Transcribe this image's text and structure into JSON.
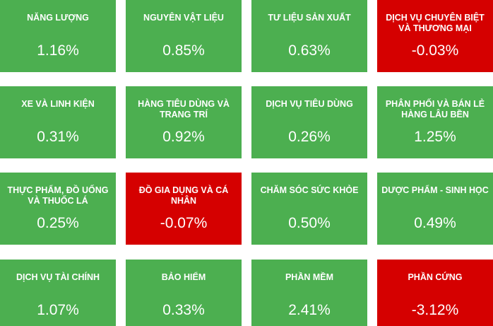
{
  "colors": {
    "positive": "#4caf50",
    "negative": "#d50000",
    "text": "#ffffff"
  },
  "tiles": [
    {
      "name": "NĂNG LƯỢNG",
      "value": "1.16%",
      "trend": "up"
    },
    {
      "name": "NGUYÊN VẬT LIỆU",
      "value": "0.85%",
      "trend": "up"
    },
    {
      "name": "TƯ LIỆU SẢN XUẤT",
      "value": "0.63%",
      "trend": "up"
    },
    {
      "name": "DỊCH VỤ CHUYÊN BIỆT VÀ THƯƠNG MẠI",
      "value": "-0.03%",
      "trend": "down"
    },
    {
      "name": "XE VÀ LINH KIỆN",
      "value": "0.31%",
      "trend": "up"
    },
    {
      "name": "HÀNG TIÊU DÙNG VÀ TRANG TRÍ",
      "value": "0.92%",
      "trend": "up"
    },
    {
      "name": "DỊCH VỤ TIÊU DÙNG",
      "value": "0.26%",
      "trend": "up"
    },
    {
      "name": "PHÂN PHỐI VÀ BÁN LẺ HÀNG LÂU BỀN",
      "value": "1.25%",
      "trend": "up"
    },
    {
      "name": "THỰC PHẨM, ĐỒ UỐNG VÀ THUỐC LÁ",
      "value": "0.25%",
      "trend": "up"
    },
    {
      "name": "ĐỒ GIA DỤNG VÀ CÁ NHÂN",
      "value": "-0.07%",
      "trend": "down"
    },
    {
      "name": "CHĂM SÓC SỨC KHỎE",
      "value": "0.50%",
      "trend": "up"
    },
    {
      "name": "DƯỢC PHẨM - SINH HỌC",
      "value": "0.49%",
      "trend": "up"
    },
    {
      "name": "DỊCH VỤ TÀI CHÍNH",
      "value": "1.07%",
      "trend": "up"
    },
    {
      "name": "BẢO HIỂM",
      "value": "0.33%",
      "trend": "up"
    },
    {
      "name": "PHẦN MỀM",
      "value": "2.41%",
      "trend": "up"
    },
    {
      "name": "PHẦN CỨNG",
      "value": "-3.12%",
      "trend": "down"
    }
  ]
}
